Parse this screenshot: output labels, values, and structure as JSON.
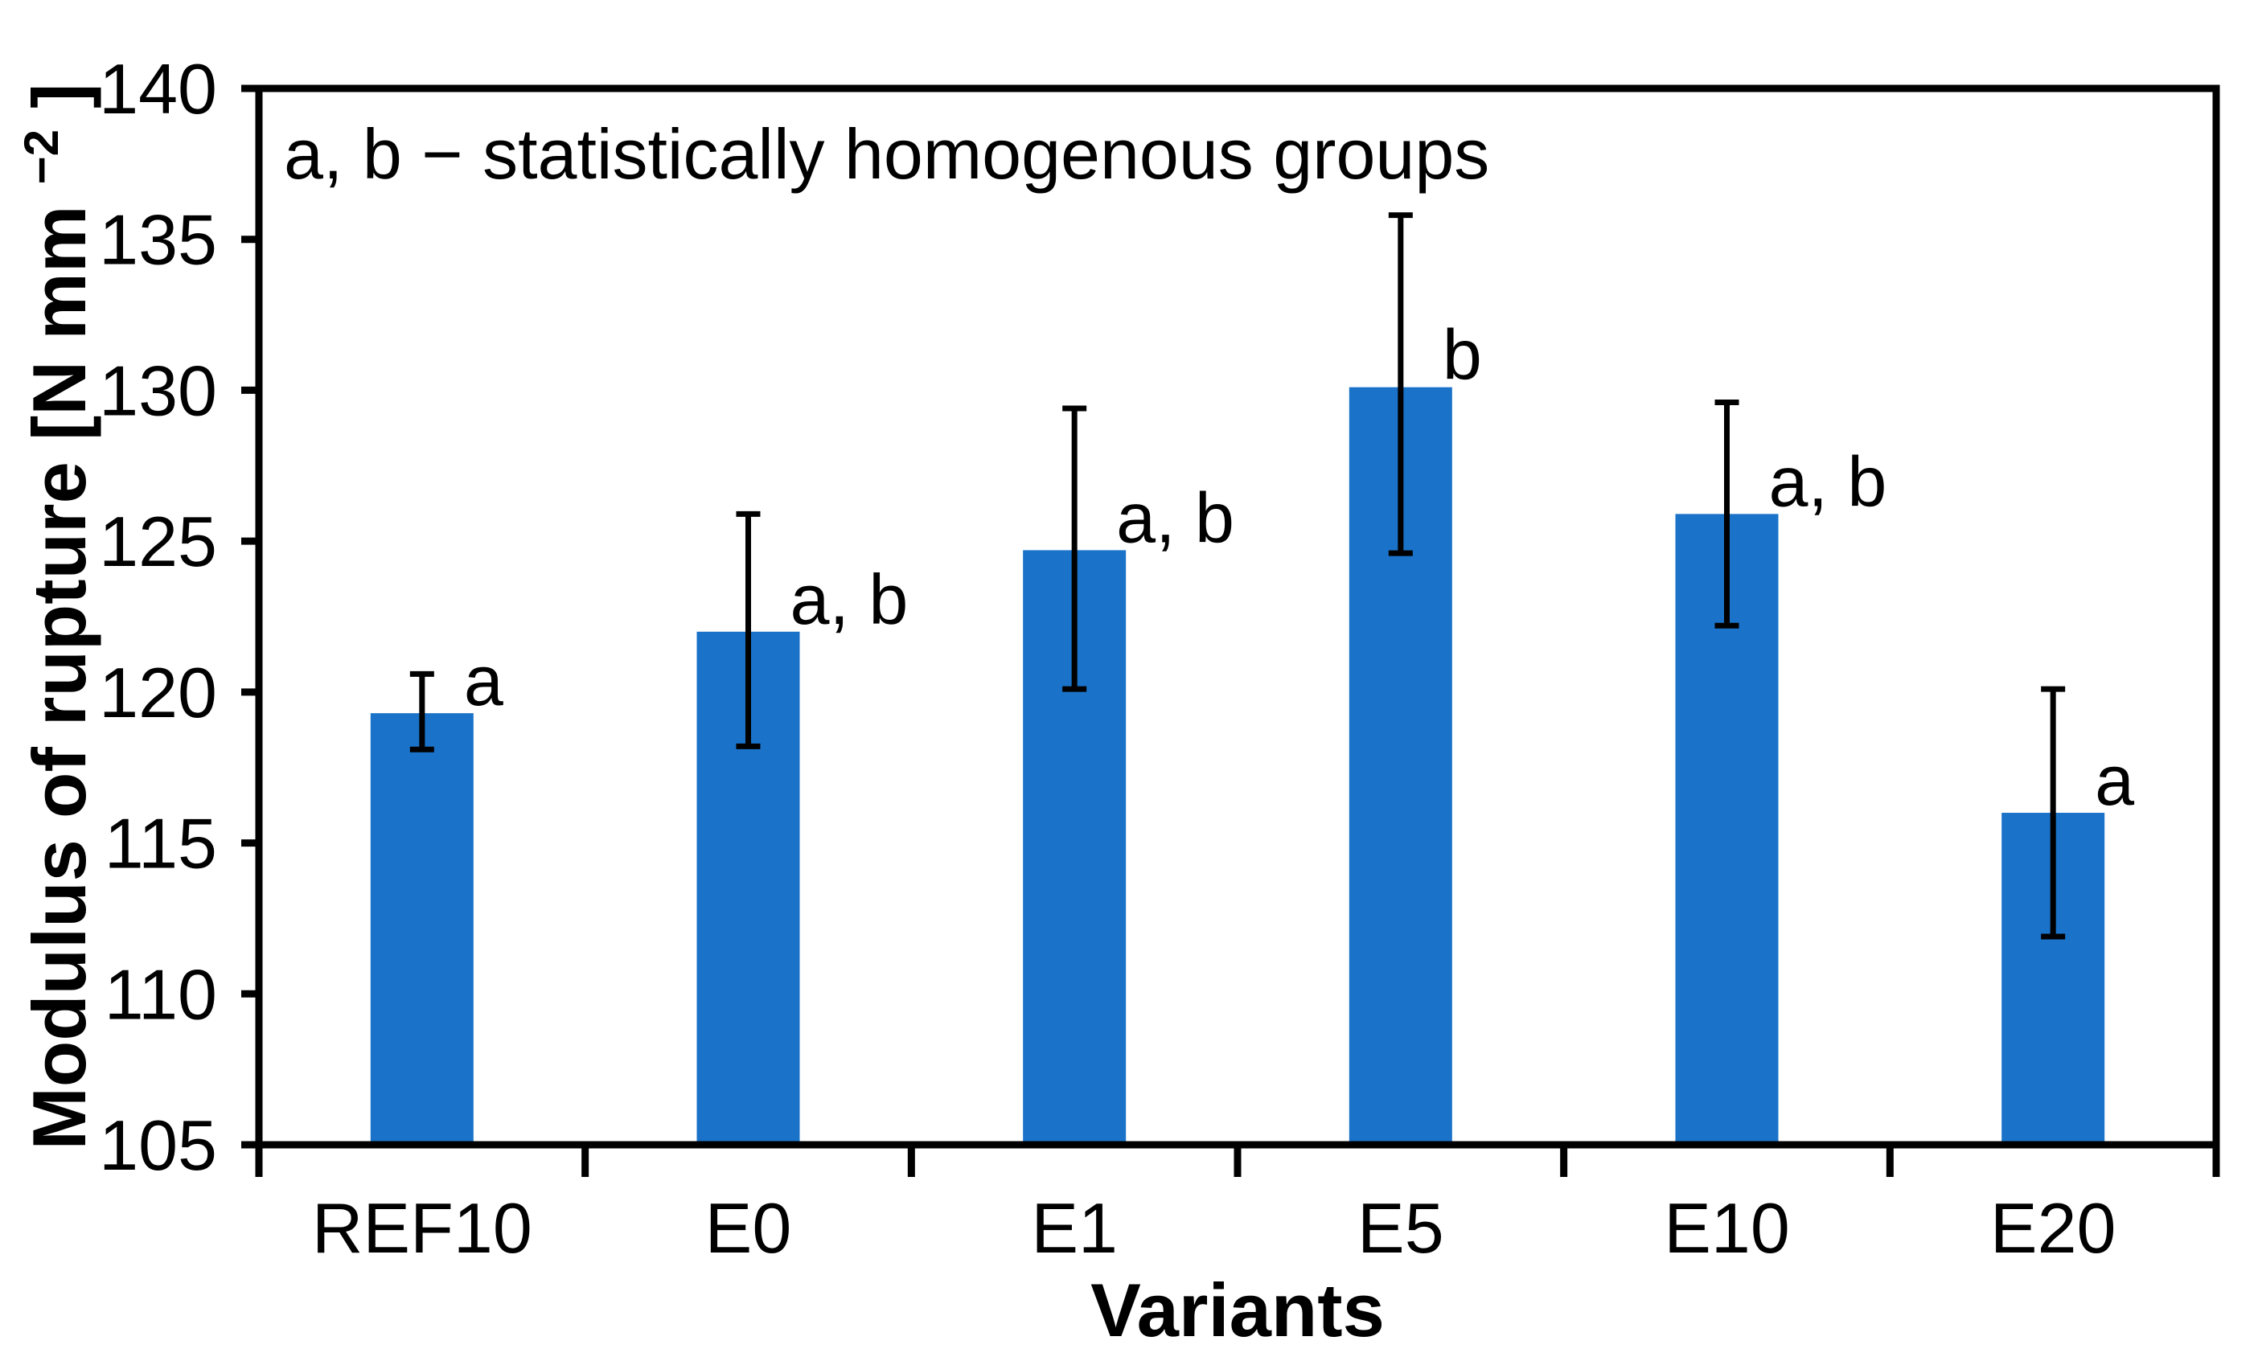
{
  "chart": {
    "annotation": "a, b − statistically homogenous groups",
    "xlabel_display": "Variants",
    "ylabel_main": "Modulus of rupture [N mm",
    "ylabel_sup": "−2",
    "ylabel_close": "]"
  },
  "colors": {
    "bar": "#1a73c9",
    "axis": "#000000",
    "background": "#ffffff"
  },
  "chart_data": {
    "type": "bar",
    "title": "",
    "categories": [
      "REF10",
      "E0",
      "E1",
      "E5",
      "E10",
      "E20"
    ],
    "values": [
      119.3,
      122.0,
      124.7,
      130.1,
      125.9,
      116.0
    ],
    "error_high": [
      120.6,
      125.9,
      129.4,
      135.8,
      129.6,
      120.1
    ],
    "error_low": [
      118.1,
      118.2,
      120.1,
      124.6,
      122.2,
      111.9
    ],
    "group_labels": [
      "a",
      "a, b",
      "a, b",
      "b",
      "a, b",
      "a"
    ],
    "xlabel": "Variants",
    "ylabel": "Modulus of rupture [N mm⁻²]",
    "ylim": [
      105,
      140
    ],
    "ytick_step": 5,
    "yticks": [
      105,
      110,
      115,
      120,
      125,
      130,
      135,
      140
    ],
    "annotation": "a, b − statistically homogenous groups",
    "grid": false,
    "legend": false,
    "bar_color": "#1a73c9",
    "error_bar_color": "#000000"
  }
}
